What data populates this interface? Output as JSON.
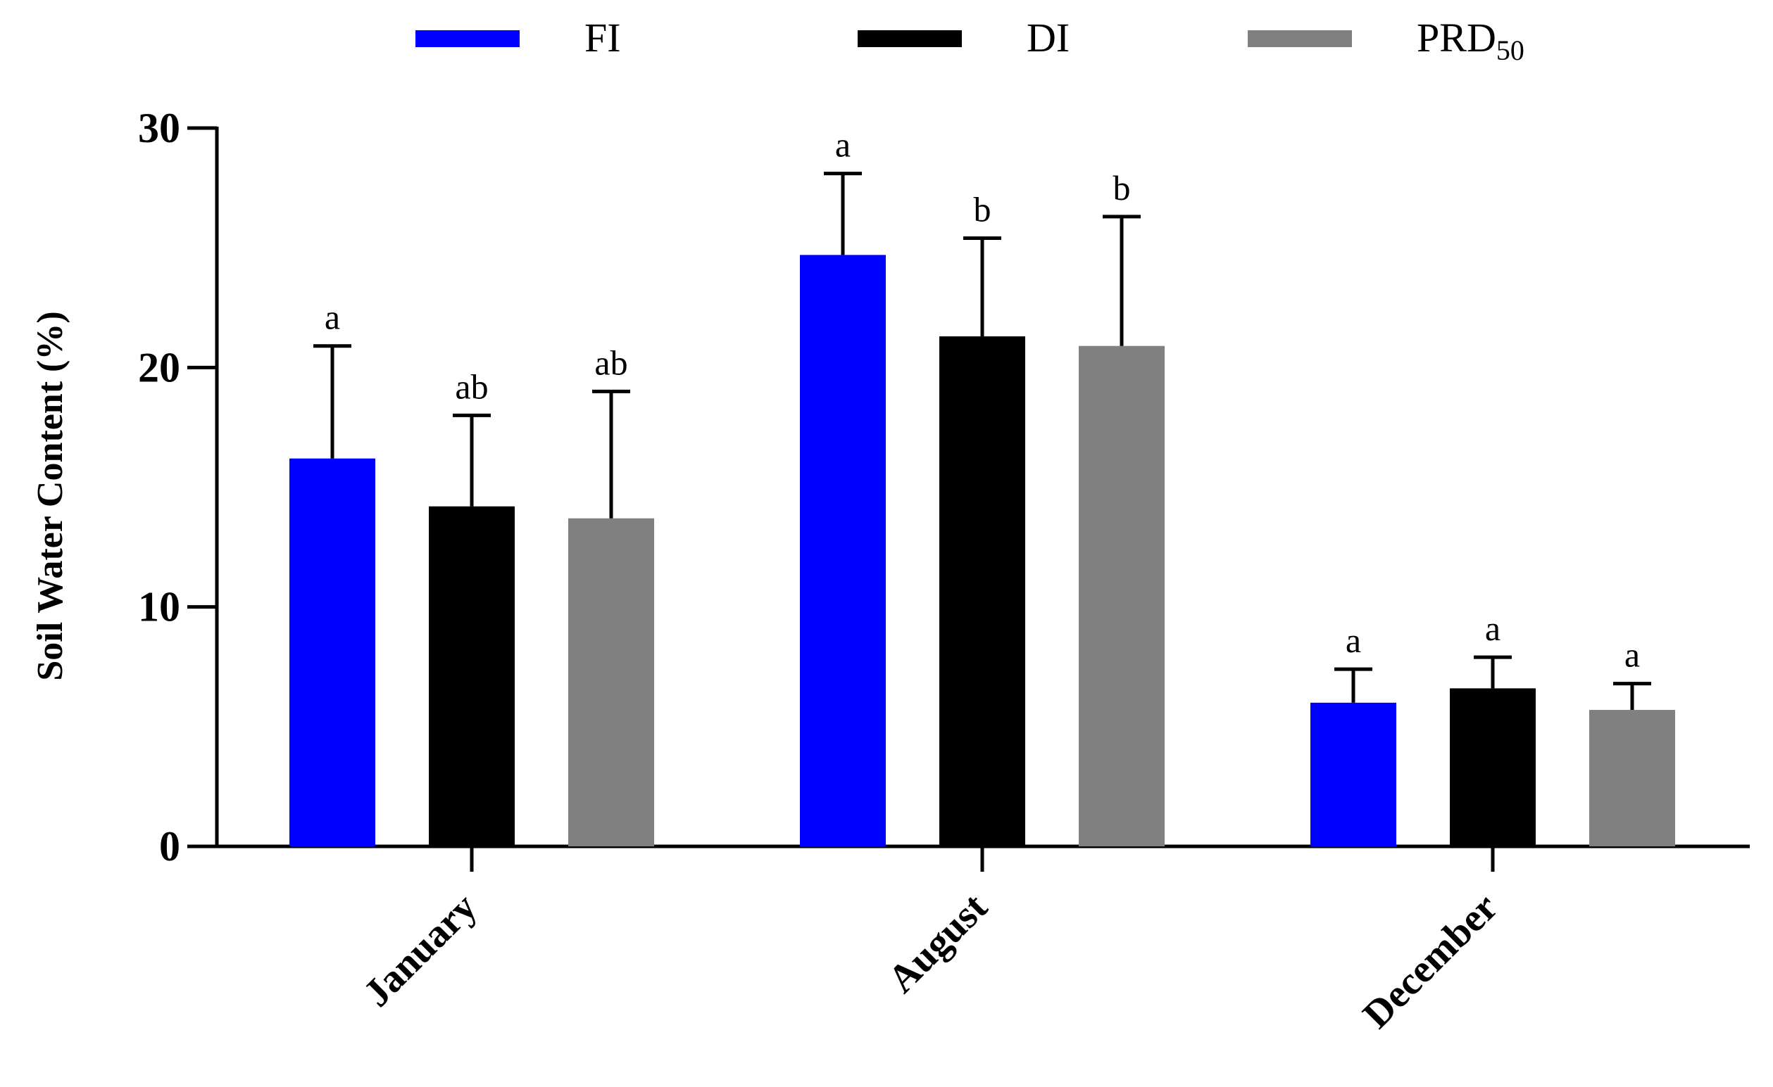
{
  "chart_data": {
    "type": "bar",
    "title": "",
    "xlabel": "",
    "ylabel": "Soil Water Content (%)",
    "ylim": [
      0,
      30
    ],
    "yticks": [
      0,
      10,
      20,
      30
    ],
    "categories": [
      "January",
      "August",
      "December"
    ],
    "series": [
      {
        "name": "FI",
        "legend_main": "FI",
        "legend_sub": "",
        "color": "#0000ff",
        "values": [
          16.2,
          24.7,
          6.0
        ],
        "errors": [
          4.7,
          3.4,
          1.4
        ],
        "significance": [
          "a",
          "a",
          "a"
        ]
      },
      {
        "name": "DI",
        "legend_main": "DI",
        "legend_sub": "",
        "color": "#000000",
        "values": [
          14.2,
          21.3,
          6.6
        ],
        "errors": [
          3.8,
          4.1,
          1.3
        ],
        "significance": [
          "ab",
          "b",
          "a"
        ]
      },
      {
        "name": "PRD50",
        "legend_main": "PRD",
        "legend_sub": "50",
        "color": "#808080",
        "values": [
          13.7,
          20.9,
          5.7
        ],
        "errors": [
          5.3,
          5.4,
          1.1
        ],
        "significance": [
          "ab",
          "b",
          "a"
        ]
      }
    ]
  }
}
